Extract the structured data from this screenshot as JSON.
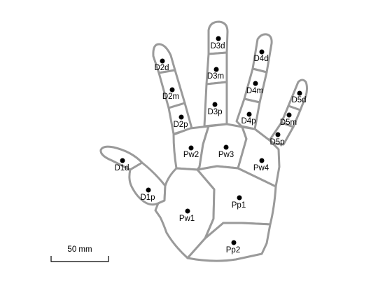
{
  "sensors": {
    "D1d": "D1d",
    "D1p": "D1p",
    "D2d": "D2d",
    "D2m": "D2m",
    "D2p": "D2p",
    "D3d": "D3d",
    "D3m": "D3m",
    "D3p": "D3p",
    "D4d": "D4d",
    "D4m": "D4m",
    "D4p": "D4p",
    "D5d": "D5d",
    "D5m": "D5m",
    "D5p": "D5p",
    "Pw2": "Pw2",
    "Pw3": "Pw3",
    "Pw4": "Pw4",
    "Pw1": "Pw1",
    "Pp1": "Pp1",
    "Pp2": "Pp2"
  },
  "scale_bar": {
    "label": "50 mm"
  },
  "colors": {
    "outline": "#9a9a9a",
    "dot": "#000000",
    "text": "#000000"
  }
}
